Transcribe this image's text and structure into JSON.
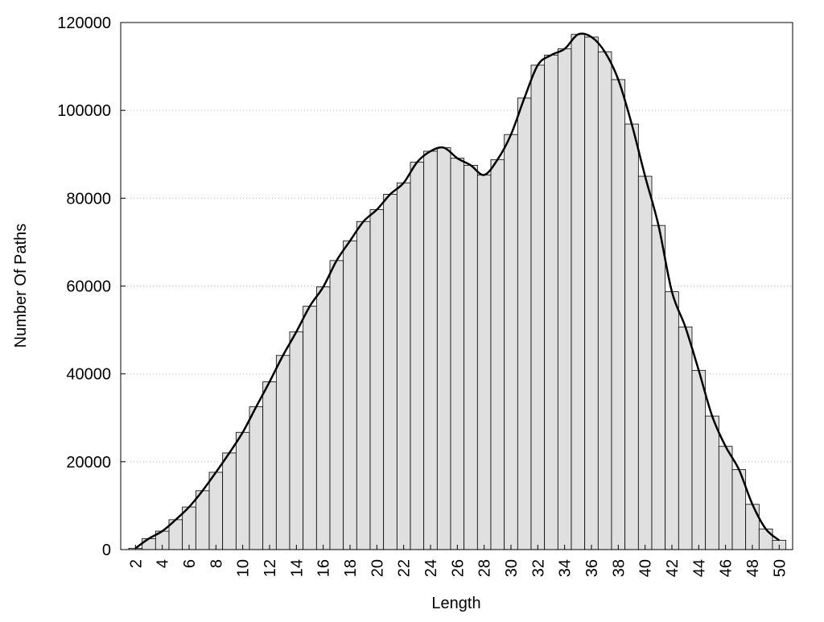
{
  "chart_data": {
    "type": "bar",
    "x": [
      2,
      3,
      4,
      5,
      6,
      7,
      8,
      9,
      10,
      11,
      12,
      13,
      14,
      15,
      16,
      17,
      18,
      19,
      20,
      21,
      22,
      23,
      24,
      25,
      26,
      27,
      28,
      29,
      30,
      31,
      32,
      33,
      34,
      35,
      36,
      37,
      38,
      39,
      40,
      41,
      42,
      43,
      44,
      45,
      46,
      47,
      48,
      49,
      50
    ],
    "values": [
      300,
      2500,
      4200,
      6800,
      9700,
      13400,
      17600,
      22000,
      26700,
      32500,
      38200,
      44200,
      49600,
      55400,
      59800,
      65800,
      70300,
      74700,
      77400,
      80900,
      83500,
      88200,
      90700,
      91500,
      89100,
      87500,
      85300,
      88800,
      94500,
      102800,
      110300,
      112600,
      114000,
      117300,
      116700,
      113300,
      107000,
      96900,
      85000,
      73800,
      58700,
      50700,
      40800,
      30400,
      23500,
      18200,
      10300,
      4700,
      2100
    ],
    "color": "#e0e0e0",
    "line_color": "#000000",
    "xlabel": "Length",
    "ylabel": "Number Of Paths",
    "xlim": [
      0.9,
      51
    ],
    "xticks": [
      2,
      4,
      6,
      8,
      10,
      12,
      14,
      16,
      18,
      20,
      22,
      24,
      26,
      28,
      30,
      32,
      34,
      36,
      38,
      40,
      42,
      44,
      46,
      48,
      50
    ],
    "ylim": [
      0,
      120000
    ],
    "yticks": [
      0,
      20000,
      40000,
      60000,
      80000,
      100000,
      120000
    ],
    "grid": true
  }
}
